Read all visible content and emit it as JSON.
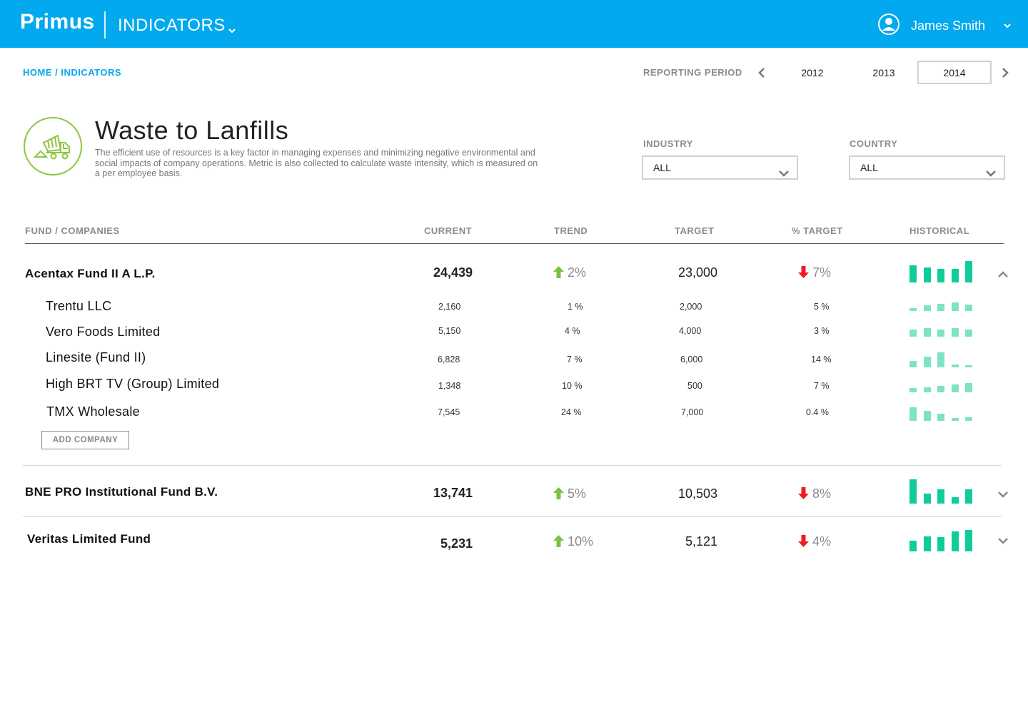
{
  "app": {
    "logo": "Primus",
    "section": "INDICATORS",
    "user_name": "James Smith"
  },
  "icons": {
    "section_menu": "chevron-down-icon",
    "user": "user-avatar-icon",
    "user_menu": "chevron-down-icon",
    "period_prev": "chevron-left-icon",
    "period_next": "chevron-right-icon",
    "indicator": "dump-truck-icon",
    "select": "chevron-down-icon",
    "trend_up": "arrow-up-icon",
    "trend_down": "arrow-down-icon",
    "expanded": "chevron-up-icon",
    "collapsed": "chevron-down-icon"
  },
  "breadcrumb": {
    "home": "HOME",
    "separator": " / ",
    "current": "INDICATORS"
  },
  "period": {
    "label": "REPORTING PERIOD",
    "years": [
      "2012",
      "2013",
      "2014"
    ],
    "selected": "2014"
  },
  "indicator": {
    "title": "Waste to Lanfills",
    "description": "The efficient use of resources is a key factor in managing expenses and minimizing negative environmental and social impacts of company operations. Metric is also collected to calculate waste intensity, which is measured on a per employee basis."
  },
  "filters": {
    "industry": {
      "label": "INDUSTRY",
      "value": "ALL"
    },
    "country": {
      "label": "COUNTRY",
      "value": "ALL"
    }
  },
  "table": {
    "headers": {
      "name": "FUND / COMPANIES",
      "current": "CURRENT",
      "trend": "TREND",
      "target": "TARGET",
      "pct_target": "% TARGET",
      "historical": "HISTORICAL"
    },
    "add_company": "ADD COMPANY",
    "funds": [
      {
        "name": "Acentax Fund II A L.P.",
        "current": "24,439",
        "trend": "2%",
        "target": "23,000",
        "pct_target": "7%",
        "historical": [
          0.75,
          0.65,
          0.6,
          0.6,
          0.95
        ],
        "expanded": true,
        "companies": [
          {
            "name": "Trentu LLC",
            "current": "2,160",
            "trend": "1 %",
            "target": "2,000",
            "pct_target": "5 %",
            "historical": [
              0.2,
              0.35,
              0.45,
              0.55,
              0.4
            ]
          },
          {
            "name": "Vero Foods Limited",
            "current": "5,150",
            "trend": "4 %",
            "target": "4,000",
            "pct_target": "3 %",
            "historical": [
              0.45,
              0.55,
              0.45,
              0.55,
              0.45
            ]
          },
          {
            "name": "Linesite (Fund II)",
            "current": "6,828",
            "trend": "7 %",
            "target": "6,000",
            "pct_target": "14 %",
            "historical": [
              0.35,
              0.6,
              0.85,
              0.15,
              0.1
            ]
          },
          {
            "name": "High BRT TV (Group) Limited",
            "current": "1,348",
            "trend": "10 %",
            "target": "500",
            "pct_target": "7 %",
            "historical": [
              0.25,
              0.3,
              0.4,
              0.5,
              0.6
            ]
          },
          {
            "name": "TMX Wholesale",
            "current": "7,545",
            "trend": "24 %",
            "target": "7,000",
            "pct_target": "0.4 %",
            "historical": [
              0.75,
              0.55,
              0.4,
              0.15,
              0.2
            ]
          }
        ]
      },
      {
        "name": "BNE PRO Institutional Fund B.V.",
        "current": "13,741",
        "trend": "5%",
        "target": "10,503",
        "pct_target": "8%",
        "historical": [
          0.95,
          0.4,
          0.55,
          0.25,
          0.55
        ],
        "expanded": false
      },
      {
        "name": "Veritas Limited Fund",
        "current": "5,231",
        "trend": "10%",
        "target": "5,121",
        "pct_target": "4%",
        "historical": [
          0.45,
          0.65,
          0.6,
          0.85,
          0.9
        ],
        "expanded": false
      }
    ]
  },
  "colors": {
    "topbar": "#03a9ee",
    "accent": "#03a9ee",
    "icon_green": "#8dc63f",
    "trend_up": "#7cc242",
    "trend_down": "#ed1c24",
    "bar_strong": "#0fcc9a",
    "bar_light": "#7ee3c5"
  }
}
